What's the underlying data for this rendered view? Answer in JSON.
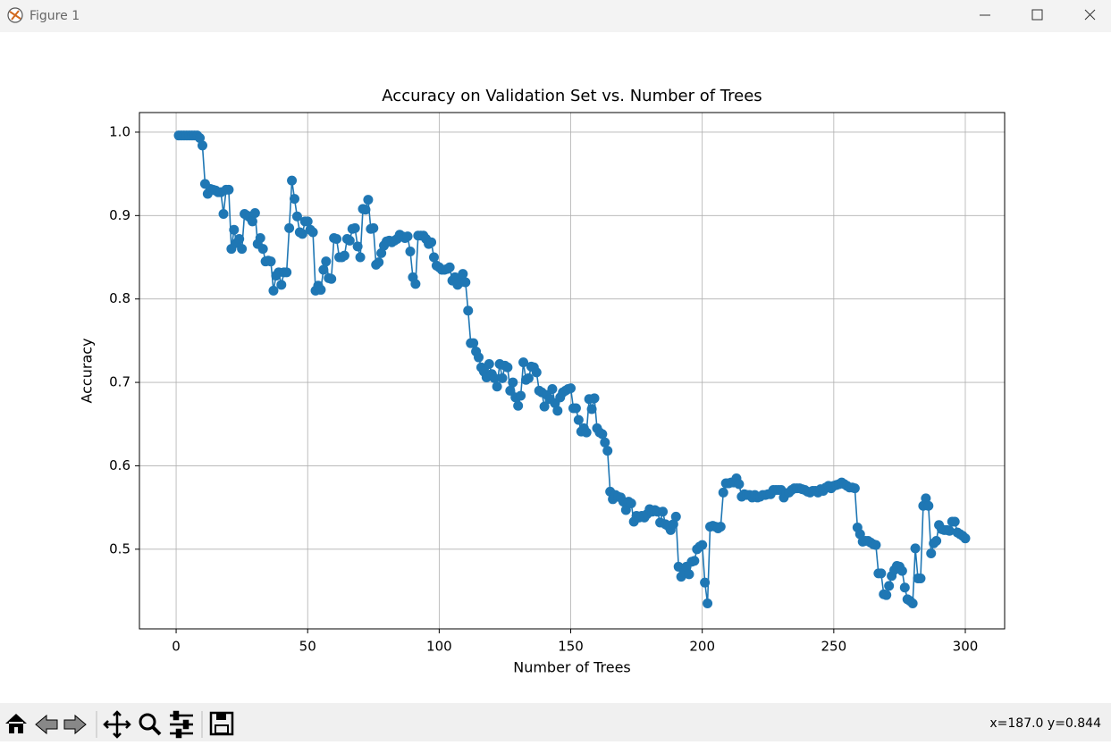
{
  "window": {
    "title": "Figure 1"
  },
  "toolbar": {
    "status": "x=187.0 y=0.844"
  },
  "chart_data": {
    "type": "line",
    "title": "Accuracy on Validation Set vs. Number of Trees",
    "x_label": "Number of Trees",
    "y_label": "Accuracy",
    "color": "#1f77b4",
    "markers": true,
    "grid": true,
    "xlim": [
      -13.95,
      314.95
    ],
    "ylim": [
      0.4045,
      1.0235
    ],
    "xticks": [
      0,
      50,
      100,
      150,
      200,
      250,
      300
    ],
    "yticks": [
      0.5,
      0.6,
      0.7,
      0.8,
      0.9,
      {
        "value": 1,
        "label": "1.0"
      }
    ],
    "x": [
      1,
      2,
      3,
      4,
      5,
      6,
      7,
      8,
      9,
      10,
      11,
      12,
      13,
      14,
      15,
      16,
      17,
      18,
      19,
      20,
      21,
      22,
      23,
      24,
      25,
      26,
      27,
      28,
      29,
      30,
      31,
      32,
      33,
      34,
      35,
      36,
      37,
      38,
      39,
      40,
      41,
      42,
      43,
      44,
      45,
      46,
      47,
      48,
      49,
      50,
      51,
      52,
      53,
      54,
      55,
      56,
      57,
      58,
      59,
      60,
      61,
      62,
      63,
      64,
      65,
      66,
      67,
      68,
      69,
      70,
      71,
      72,
      73,
      74,
      75,
      76,
      77,
      78,
      79,
      80,
      81,
      82,
      83,
      84,
      85,
      86,
      87,
      88,
      89,
      90,
      91,
      92,
      93,
      94,
      95,
      96,
      97,
      98,
      99,
      100,
      101,
      102,
      103,
      104,
      105,
      106,
      107,
      108,
      109,
      110,
      111,
      112,
      113,
      114,
      115,
      116,
      117,
      118,
      119,
      120,
      121,
      122,
      123,
      124,
      125,
      126,
      127,
      128,
      129,
      130,
      131,
      132,
      133,
      134,
      135,
      136,
      137,
      138,
      139,
      140,
      141,
      142,
      143,
      144,
      145,
      146,
      147,
      148,
      149,
      150,
      151,
      152,
      153,
      154,
      155,
      156,
      157,
      158,
      159,
      160,
      161,
      162,
      163,
      164,
      165,
      166,
      167,
      168,
      169,
      170,
      171,
      172,
      173,
      174,
      175,
      176,
      177,
      178,
      179,
      180,
      181,
      182,
      183,
      184,
      185,
      186,
      187,
      188,
      189,
      190,
      191,
      192,
      193,
      194,
      195,
      196,
      197,
      198,
      199,
      200,
      201,
      202,
      203,
      204,
      205,
      206,
      207,
      208,
      209,
      210,
      211,
      212,
      213,
      214,
      215,
      216,
      217,
      218,
      219,
      220,
      221,
      222,
      223,
      224,
      225,
      226,
      227,
      228,
      229,
      230,
      231,
      232,
      233,
      234,
      235,
      236,
      237,
      238,
      239,
      240,
      241,
      242,
      243,
      244,
      245,
      246,
      247,
      248,
      249,
      250,
      251,
      252,
      253,
      254,
      255,
      256,
      257,
      258,
      259,
      260,
      261,
      262,
      263,
      264,
      265,
      266,
      267,
      268,
      269,
      270,
      271,
      272,
      273,
      274,
      275,
      276,
      277,
      278,
      279,
      280,
      281,
      282,
      283,
      284,
      285,
      286,
      287,
      288,
      289,
      290,
      291,
      292,
      293,
      294,
      295,
      296,
      297,
      298,
      299,
      300
    ],
    "values": [
      0.996,
      0.996,
      0.996,
      0.996,
      0.996,
      0.996,
      0.996,
      0.996,
      0.993,
      0.984,
      0.938,
      0.926,
      0.932,
      0.931,
      0.93,
      0.928,
      0.928,
      0.902,
      0.931,
      0.931,
      0.86,
      0.883,
      0.867,
      0.872,
      0.86,
      0.902,
      0.9,
      0.898,
      0.893,
      0.903,
      0.866,
      0.873,
      0.86,
      0.845,
      0.846,
      0.845,
      0.81,
      0.828,
      0.832,
      0.817,
      0.832,
      0.832,
      0.885,
      0.942,
      0.92,
      0.899,
      0.88,
      0.878,
      0.893,
      0.893,
      0.883,
      0.88,
      0.81,
      0.816,
      0.811,
      0.835,
      0.845,
      0.825,
      0.824,
      0.873,
      0.872,
      0.85,
      0.85,
      0.852,
      0.872,
      0.87,
      0.884,
      0.885,
      0.863,
      0.85,
      0.908,
      0.907,
      0.919,
      0.884,
      0.885,
      0.841,
      0.844,
      0.855,
      0.864,
      0.869,
      0.87,
      0.868,
      0.87,
      0.872,
      0.877,
      0.875,
      0.873,
      0.875,
      0.857,
      0.826,
      0.818,
      0.876,
      0.876,
      0.876,
      0.872,
      0.866,
      0.868,
      0.85,
      0.84,
      0.838,
      0.835,
      0.835,
      0.836,
      0.838,
      0.822,
      0.826,
      0.817,
      0.82,
      0.83,
      0.82,
      0.786,
      0.747,
      0.747,
      0.737,
      0.73,
      0.718,
      0.713,
      0.706,
      0.722,
      0.71,
      0.705,
      0.695,
      0.722,
      0.705,
      0.72,
      0.718,
      0.69,
      0.7,
      0.682,
      0.672,
      0.684,
      0.724,
      0.703,
      0.705,
      0.719,
      0.718,
      0.712,
      0.69,
      0.688,
      0.671,
      0.685,
      0.68,
      0.692,
      0.675,
      0.666,
      0.682,
      0.688,
      0.69,
      0.692,
      0.693,
      0.669,
      0.669,
      0.655,
      0.641,
      0.645,
      0.64,
      0.68,
      0.668,
      0.681,
      0.645,
      0.64,
      0.638,
      0.628,
      0.618,
      0.569,
      0.56,
      0.565,
      0.563,
      0.562,
      0.557,
      0.547,
      0.557,
      0.555,
      0.533,
      0.54,
      0.538,
      0.54,
      0.538,
      0.542,
      0.548,
      0.545,
      0.547,
      0.545,
      0.532,
      0.545,
      0.53,
      0.528,
      0.523,
      0.53,
      0.539,
      0.479,
      0.467,
      0.472,
      0.479,
      0.47,
      0.485,
      0.486,
      0.5,
      0.503,
      0.505,
      0.46,
      0.435,
      0.527,
      0.528,
      0.527,
      0.525,
      0.527,
      0.568,
      0.579,
      0.579,
      0.58,
      0.58,
      0.585,
      0.578,
      0.563,
      0.566,
      0.565,
      0.565,
      0.562,
      0.565,
      0.562,
      0.563,
      0.565,
      0.565,
      0.566,
      0.566,
      0.571,
      0.571,
      0.571,
      0.571,
      0.562,
      0.567,
      0.568,
      0.571,
      0.573,
      0.573,
      0.573,
      0.572,
      0.571,
      0.569,
      0.568,
      0.57,
      0.57,
      0.568,
      0.572,
      0.57,
      0.574,
      0.576,
      0.573,
      0.576,
      0.577,
      0.578,
      0.58,
      0.578,
      0.576,
      0.574,
      0.574,
      0.573,
      0.526,
      0.518,
      0.509,
      0.51,
      0.51,
      0.508,
      0.506,
      0.505,
      0.471,
      0.471,
      0.446,
      0.445,
      0.456,
      0.468,
      0.475,
      0.48,
      0.479,
      0.474,
      0.454,
      0.44,
      0.438,
      0.435,
      0.501,
      0.465,
      0.465,
      0.552,
      0.561,
      0.552,
      0.495,
      0.507,
      0.51,
      0.529,
      0.524,
      0.523,
      0.523,
      0.522,
      0.533,
      0.533,
      0.52,
      0.518,
      0.516,
      0.513
    ]
  }
}
